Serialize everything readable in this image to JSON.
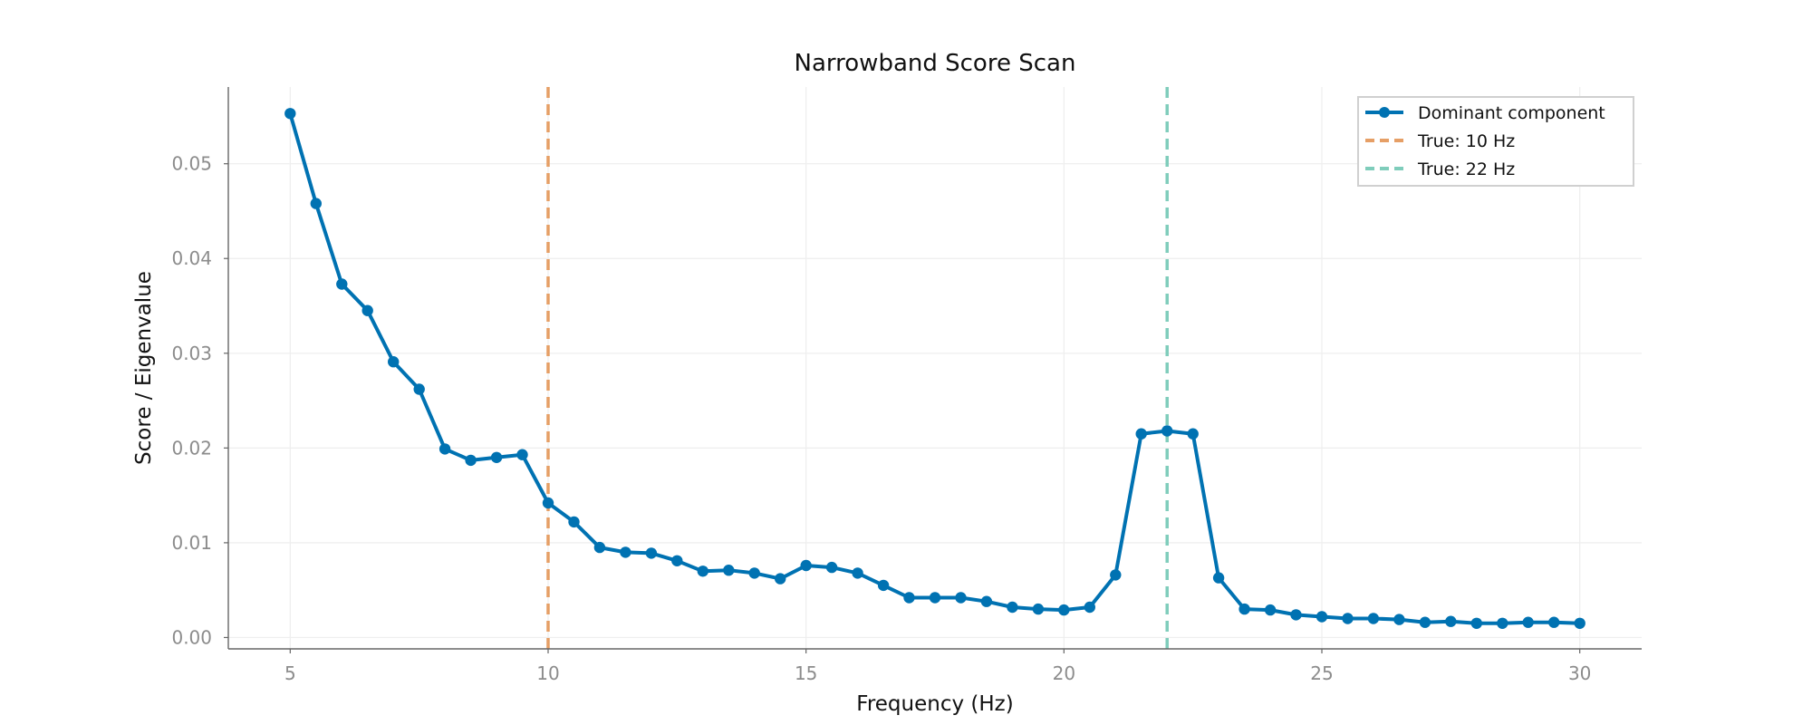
{
  "chart_data": {
    "type": "line",
    "title": "Narrowband Score Scan",
    "xlabel": "Frequency (Hz)",
    "ylabel": "Score / Eigenvalue",
    "xlim": [
      3.8,
      31.2
    ],
    "ylim": [
      -0.0012,
      0.0581
    ],
    "x_ticks": [
      5,
      10,
      15,
      20,
      25,
      30
    ],
    "y_ticks": [
      0.0,
      0.01,
      0.02,
      0.03,
      0.04,
      0.05
    ],
    "x_tick_labels": [
      "5",
      "10",
      "15",
      "20",
      "25",
      "30"
    ],
    "y_tick_labels": [
      "0.00",
      "0.01",
      "0.02",
      "0.03",
      "0.04",
      "0.05"
    ],
    "grid": true,
    "legend_position": "top-right",
    "series": [
      {
        "name": "Dominant component",
        "color": "#0072b2",
        "x": [
          5,
          5.5,
          6,
          6.5,
          7,
          7.5,
          8,
          8.5,
          9,
          9.5,
          10,
          10.5,
          11,
          11.5,
          12,
          12.5,
          13,
          13.5,
          14,
          14.5,
          15,
          15.5,
          16,
          16.5,
          17,
          17.5,
          18,
          18.5,
          19,
          19.5,
          20,
          20.5,
          21,
          21.5,
          22,
          22.5,
          23,
          23.5,
          24,
          24.5,
          25,
          25.5,
          26,
          26.5,
          27,
          27.5,
          28,
          28.5,
          29,
          29.5,
          30
        ],
        "y": [
          0.0553,
          0.0458,
          0.0373,
          0.0345,
          0.0291,
          0.0262,
          0.0199,
          0.0187,
          0.019,
          0.0193,
          0.0142,
          0.0122,
          0.0095,
          0.009,
          0.0089,
          0.0081,
          0.007,
          0.0071,
          0.0068,
          0.0062,
          0.0076,
          0.0074,
          0.0068,
          0.0055,
          0.0042,
          0.0042,
          0.0042,
          0.0038,
          0.0032,
          0.003,
          0.0029,
          0.0032,
          0.0066,
          0.0215,
          0.0218,
          0.0215,
          0.0063,
          0.003,
          0.0029,
          0.0024,
          0.0022,
          0.002,
          0.002,
          0.0019,
          0.0016,
          0.0017,
          0.0015,
          0.0015,
          0.0016,
          0.0016,
          0.0015
        ]
      }
    ],
    "reference_lines": [
      {
        "name": "True: 10 Hz",
        "x": 10,
        "color": "#e69f66",
        "style": "dashed"
      },
      {
        "name": "True: 22 Hz",
        "x": 22,
        "color": "#7fcdbb",
        "style": "dashed"
      }
    ]
  }
}
